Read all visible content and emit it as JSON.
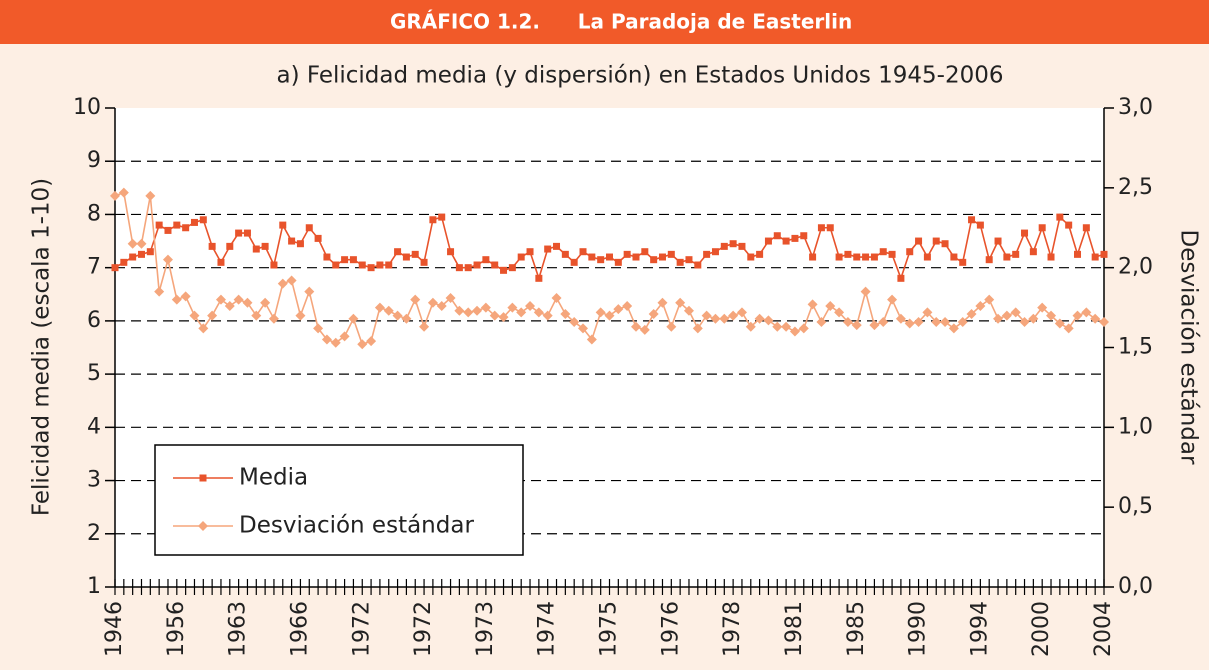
{
  "chart_data": {
    "type": "line",
    "figure_label": "GRÁFICO 1.2.",
    "title": "La Paradoja de Easterlin",
    "subtitle": "a)  Felicidad media (y dispersión) en Estados Unidos 1945-2006",
    "y_label": "Felicidad media (escala 1-10)",
    "y2_label": "Desviación estándar",
    "categories": [
      "1946",
      null,
      null,
      null,
      null,
      null,
      null,
      "1956",
      null,
      null,
      null,
      null,
      null,
      null,
      "1963",
      null,
      null,
      null,
      null,
      null,
      null,
      "1966",
      null,
      null,
      null,
      null,
      null,
      null,
      "1972",
      null,
      null,
      null,
      null,
      null,
      null,
      "1972",
      null,
      null,
      null,
      null,
      null,
      null,
      "1973",
      null,
      null,
      null,
      null,
      null,
      null,
      "1974",
      null,
      null,
      null,
      null,
      null,
      null,
      "1975",
      null,
      null,
      null,
      null,
      null,
      null,
      "1976",
      null,
      null,
      null,
      null,
      null,
      null,
      "1978",
      null,
      null,
      null,
      null,
      null,
      null,
      "1981",
      null,
      null,
      null,
      null,
      null,
      null,
      "1985",
      null,
      null,
      null,
      null,
      null,
      null,
      "1990",
      null,
      null,
      null,
      null,
      null,
      null,
      "1994",
      null,
      null,
      null,
      null,
      null,
      null,
      "2000",
      null,
      null,
      null,
      null,
      null,
      null,
      "2004"
    ],
    "ylim": [
      1,
      10
    ],
    "yticks": [
      1,
      2,
      3,
      4,
      5,
      6,
      7,
      8,
      9,
      10
    ],
    "y2lim": [
      0,
      3
    ],
    "y2ticks": [
      {
        "value": 0,
        "label": "0,0"
      },
      {
        "value": 0.5,
        "label": "0,5"
      },
      {
        "value": 1,
        "label": "1,0"
      },
      {
        "value": 1.5,
        "label": "1,5"
      },
      {
        "value": 2,
        "label": "2,0"
      },
      {
        "value": 2.5,
        "label": "2,5"
      },
      {
        "value": 3,
        "label": "3,0"
      }
    ],
    "grid": true,
    "grid_style": "dashed",
    "legend": "lower left",
    "series": [
      {
        "name": "Media",
        "color": "#e8532b",
        "marker": "square",
        "values": [
          7.0,
          7.1,
          7.2,
          7.25,
          7.3,
          7.8,
          7.7,
          7.8,
          7.75,
          7.85,
          7.9,
          7.4,
          7.1,
          7.4,
          7.65,
          7.65,
          7.35,
          7.4,
          7.05,
          7.8,
          7.5,
          7.45,
          7.75,
          7.55,
          7.2,
          7.05,
          7.15,
          7.15,
          7.05,
          7.0,
          7.05,
          7.05,
          7.3,
          7.2,
          7.25,
          7.1,
          7.9,
          7.95,
          7.3,
          7.0,
          7.0,
          7.05,
          7.15,
          7.05,
          6.95,
          7.0,
          7.2,
          7.3,
          6.8,
          7.35,
          7.4,
          7.25,
          7.1,
          7.3,
          7.2,
          7.15,
          7.2,
          7.1,
          7.25,
          7.2,
          7.3,
          7.15,
          7.2,
          7.25,
          7.1,
          7.15,
          7.05,
          7.25,
          7.3,
          7.4,
          7.45,
          7.4,
          7.2,
          7.25,
          7.5,
          7.6,
          7.5,
          7.55,
          7.6,
          7.2,
          7.75,
          7.75,
          7.2,
          7.25,
          7.2,
          7.2,
          7.2,
          7.3,
          7.25,
          6.8,
          7.3,
          7.5,
          7.2,
          7.5,
          7.45,
          7.2,
          7.1,
          7.9,
          7.8,
          7.15,
          7.5,
          7.2,
          7.25,
          7.65,
          7.3,
          7.75,
          7.2,
          7.95,
          7.8,
          7.25,
          7.75,
          7.2,
          7.25
        ]
      },
      {
        "name": "Desviación estándar",
        "color": "#f5a67c",
        "marker": "diamond",
        "axis": "y2",
        "values": [
          2.45,
          2.47,
          2.15,
          2.15,
          2.45,
          1.85,
          2.05,
          1.8,
          1.82,
          1.7,
          1.62,
          1.7,
          1.8,
          1.76,
          1.8,
          1.78,
          1.7,
          1.78,
          1.68,
          1.9,
          1.92,
          1.7,
          1.85,
          1.62,
          1.55,
          1.53,
          1.57,
          1.68,
          1.52,
          1.54,
          1.75,
          1.73,
          1.7,
          1.68,
          1.8,
          1.63,
          1.78,
          1.76,
          1.81,
          1.73,
          1.72,
          1.73,
          1.75,
          1.7,
          1.69,
          1.75,
          1.72,
          1.76,
          1.72,
          1.7,
          1.81,
          1.71,
          1.66,
          1.62,
          1.55,
          1.72,
          1.7,
          1.74,
          1.76,
          1.63,
          1.61,
          1.71,
          1.78,
          1.63,
          1.78,
          1.73,
          1.62,
          1.7,
          1.68,
          1.68,
          1.7,
          1.72,
          1.63,
          1.68,
          1.67,
          1.63,
          1.63,
          1.6,
          1.62,
          1.77,
          1.66,
          1.76,
          1.72,
          1.66,
          1.64,
          1.85,
          1.64,
          1.66,
          1.8,
          1.68,
          1.65,
          1.66,
          1.72,
          1.66,
          1.66,
          1.62,
          1.66,
          1.71,
          1.76,
          1.8,
          1.68,
          1.7,
          1.72,
          1.66,
          1.68,
          1.75,
          1.7,
          1.65,
          1.62,
          1.7,
          1.72,
          1.68,
          1.66
        ]
      }
    ]
  }
}
